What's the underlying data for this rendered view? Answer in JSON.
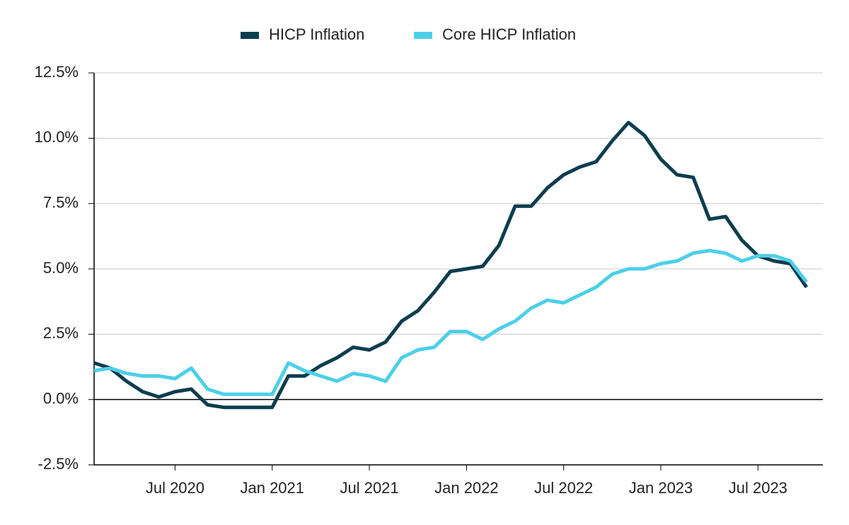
{
  "chart_data": {
    "type": "line",
    "categories": [
      null,
      null,
      null,
      null,
      null,
      "Jul 2020",
      null,
      null,
      null,
      null,
      null,
      "Jan 2021",
      null,
      null,
      null,
      null,
      null,
      "Jul 2021",
      null,
      null,
      null,
      null,
      null,
      "Jan 2022",
      null,
      null,
      null,
      null,
      null,
      "Jul 2022",
      null,
      null,
      null,
      null,
      null,
      "Jan 2023",
      null,
      null,
      null,
      null,
      null,
      "Jul 2023",
      null,
      null,
      null
    ],
    "series": [
      {
        "name": "HICP Inflation",
        "color": "#0d3d4f",
        "values": [
          1.4,
          1.2,
          0.7,
          0.3,
          0.1,
          0.3,
          0.4,
          -0.2,
          -0.3,
          -0.3,
          -0.3,
          -0.3,
          0.9,
          0.9,
          1.3,
          1.6,
          2.0,
          1.9,
          2.2,
          3.0,
          3.4,
          4.1,
          4.9,
          5.0,
          5.1,
          5.9,
          7.4,
          7.4,
          8.1,
          8.6,
          8.9,
          9.1,
          9.9,
          10.6,
          10.1,
          9.2,
          8.6,
          8.5,
          6.9,
          7.0,
          6.1,
          5.5,
          5.3,
          5.2,
          4.3
        ]
      },
      {
        "name": "Core HICP Inflation",
        "color": "#4dcfe8",
        "values": [
          1.1,
          1.2,
          1.0,
          0.9,
          0.9,
          0.8,
          1.2,
          0.4,
          0.2,
          0.2,
          0.2,
          0.2,
          1.4,
          1.1,
          0.9,
          0.7,
          1.0,
          0.9,
          0.7,
          1.6,
          1.9,
          2.0,
          2.6,
          2.6,
          2.3,
          2.7,
          3.0,
          3.5,
          3.8,
          3.7,
          4.0,
          4.3,
          4.8,
          5.0,
          5.0,
          5.2,
          5.3,
          5.6,
          5.7,
          5.6,
          5.3,
          5.5,
          5.5,
          5.3,
          4.5
        ]
      }
    ],
    "ylim": [
      -2.5,
      12.5
    ],
    "yticks": [
      {
        "value": -2.5,
        "label": "-2.5%"
      },
      {
        "value": 0,
        "label": "0.0%"
      },
      {
        "value": 2.5,
        "label": "2.5%"
      },
      {
        "value": 5,
        "label": "5.0%"
      },
      {
        "value": 7.5,
        "label": "7.5%"
      },
      {
        "value": 10,
        "label": "10.0%"
      },
      {
        "value": 12.5,
        "label": "12.5%"
      }
    ],
    "grid": true,
    "legend": "top"
  }
}
